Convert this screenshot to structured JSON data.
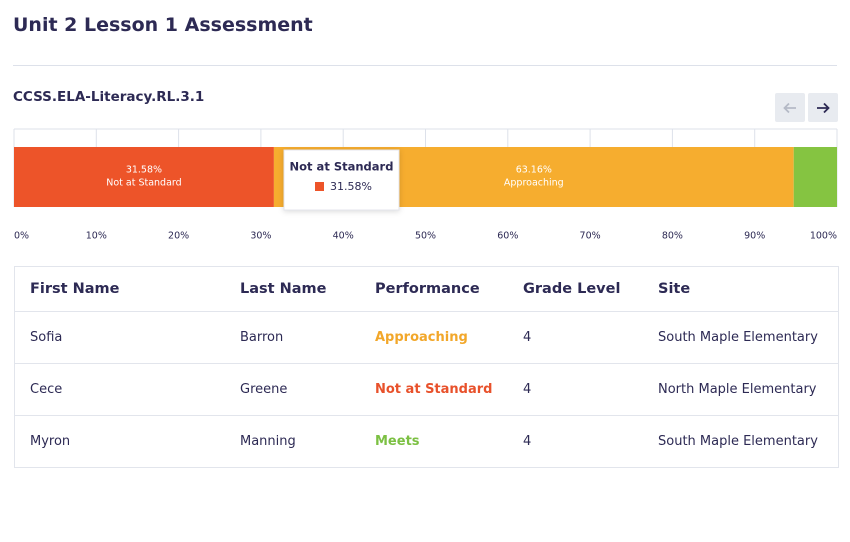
{
  "header": {
    "title": "Unit 2 Lesson 1 Assessment"
  },
  "standard": {
    "code": "CCSS.ELA-Literacy.RL.3.1"
  },
  "chart_data": {
    "type": "stacked-bar",
    "xlim": [
      0,
      100
    ],
    "xticks": [
      {
        "value": 0,
        "label": "0%"
      },
      {
        "value": 10,
        "label": "10%"
      },
      {
        "value": 20,
        "label": "20%"
      },
      {
        "value": 30,
        "label": "30%"
      },
      {
        "value": 40,
        "label": "40%"
      },
      {
        "value": 50,
        "label": "50%"
      },
      {
        "value": 60,
        "label": "60%"
      },
      {
        "value": 70,
        "label": "70%"
      },
      {
        "value": 80,
        "label": "80%"
      },
      {
        "value": 90,
        "label": "90%"
      },
      {
        "value": 100,
        "label": "100%"
      }
    ],
    "grid": true,
    "series": [
      {
        "name": "Not at Standard",
        "color": "#ed5429",
        "values": [
          31.58
        ],
        "value_labels": [
          "31.58%"
        ]
      },
      {
        "name": "Approaching",
        "color": "#f6ad2f",
        "values": [
          63.16
        ],
        "value_labels": [
          "63.16%"
        ]
      },
      {
        "color": "#85c441",
        "values": [
          5.26
        ]
      }
    ]
  },
  "table": {
    "columns": [
      "First Name",
      "Last Name",
      "Performance",
      "Grade Level",
      "Site"
    ],
    "rows": [
      [
        "Sofia",
        "Barron",
        "Approaching",
        "4",
        "South Maple Elementary"
      ],
      [
        "Cece",
        "Greene",
        "Not at Standard",
        "4",
        "North Maple Elementary"
      ],
      [
        "Myron",
        "Manning",
        "Meets",
        "4",
        "South Maple Elementary"
      ]
    ]
  }
}
